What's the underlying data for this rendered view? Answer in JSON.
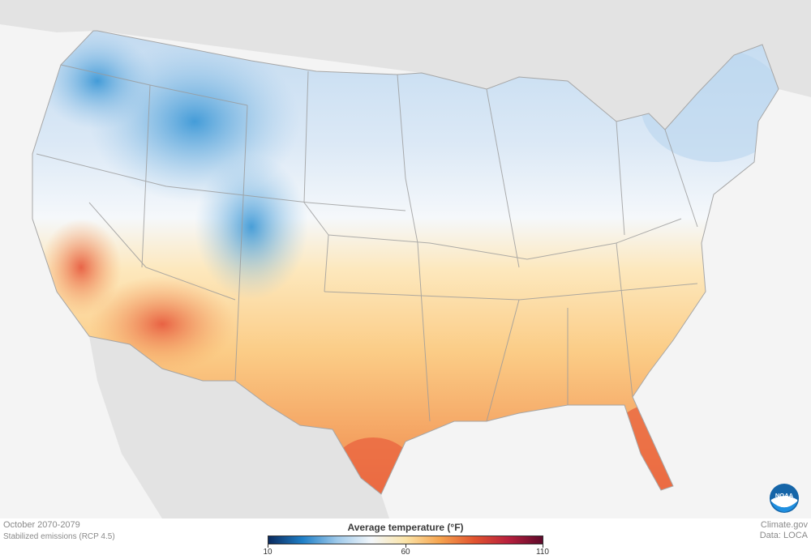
{
  "caption": {
    "period": "October 2070-2079",
    "scenario": "Stabilized emissions (RCP 4.5)",
    "source_site": "Climate.gov",
    "source_data": "Data: LOCA"
  },
  "legend": {
    "title": "Average temperature (°F)",
    "min": 10,
    "mid": 60,
    "max": 110,
    "tick_labels": [
      "10",
      "60",
      "110"
    ],
    "colors": [
      "#0a2a5e",
      "#1f7fc7",
      "#9ec9ea",
      "#f3f7fb",
      "#fbe4a8",
      "#f6a44f",
      "#e2542f",
      "#b8203d",
      "#5e0a2b"
    ]
  },
  "logo": {
    "text": "NOAA",
    "icon": "noaa-logo-icon"
  },
  "map_colors": {
    "land_background": "#e2e2e2",
    "ocean": "#f4f4f4",
    "cold": "#4a9ed8",
    "cool": "#cfe2f3",
    "neutral": "#f4f7fb",
    "warm": "#fbd38d",
    "hot": "#f07a45",
    "hottest": "#e0523a",
    "state_border": "#9a9a9a"
  }
}
